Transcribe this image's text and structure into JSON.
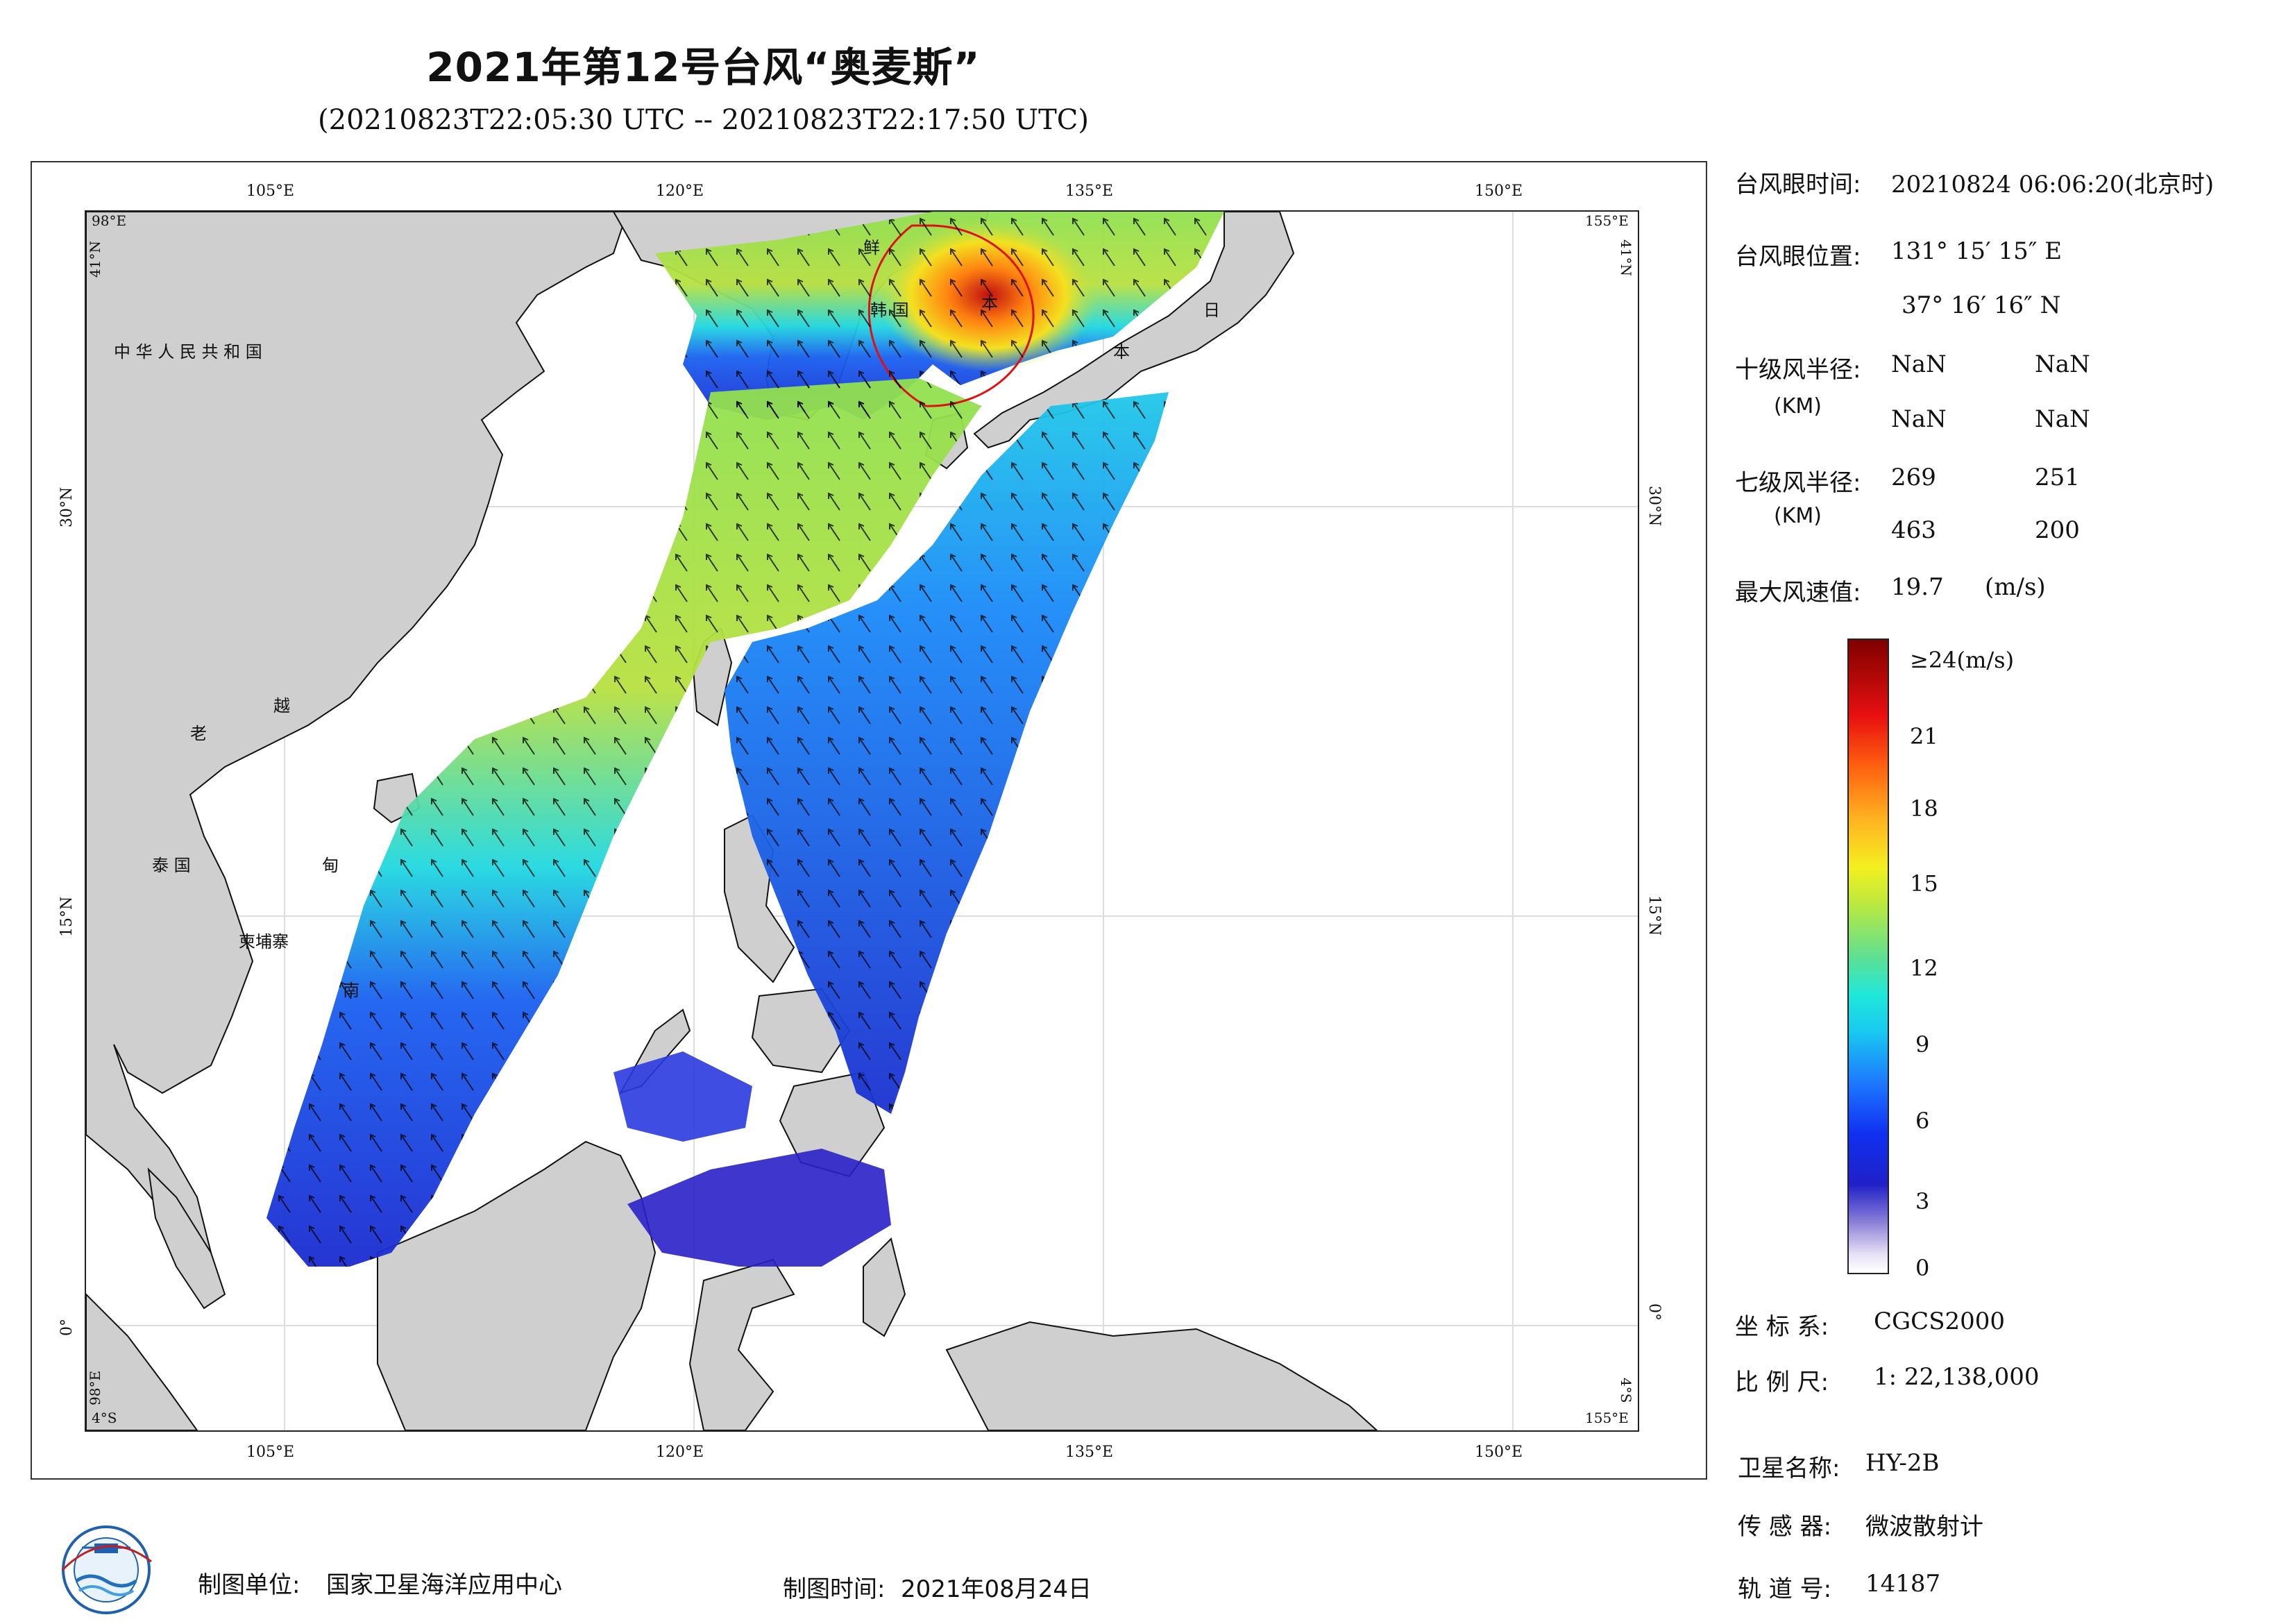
{
  "header": {
    "title": "2021年第12号台风“奥麦斯”",
    "subtitle": "(20210823T22:05:30 UTC -- 20210823T22:17:50 UTC)"
  },
  "map": {
    "top_ticks": [
      "105°E",
      "120°E",
      "135°E",
      "150°E"
    ],
    "bottom_ticks": [
      "105°E",
      "120°E",
      "135°E",
      "150°E"
    ],
    "left_ticks": [
      "30°N",
      "15°N",
      "0°"
    ],
    "right_ticks": [
      "30°N",
      "15°N",
      "0°"
    ],
    "corner_tl_lon": "98°E",
    "corner_tl_lat": "41°N",
    "corner_tr_lon": "155°E",
    "corner_tr_lat": "41°N",
    "corner_bl_lat": "4°S",
    "corner_bl_lon": "98°E",
    "corner_br_lat": "4°S",
    "corner_br_lon": "155°E",
    "labels": {
      "china": "中 华 人 民 共 和 国",
      "laos": "老",
      "vietnam_1": "越",
      "vietnam_2": "南",
      "thailand": "泰 国",
      "cambodia": "柬埔寨",
      "korea_north": "鲜",
      "korea_south": "韩 国",
      "japan_1": "日",
      "japan_2": "本",
      "dian": "甸",
      "ben": "本"
    },
    "colors": {
      "land": "#cfcfcf",
      "coast": "#111111",
      "low_wind": "#1a3ad8",
      "mid_wind": "#22d8e8",
      "high_wind": "#b8e040",
      "max_wind": "#e02010"
    }
  },
  "info": {
    "eye_time_label": "台风眼时间:",
    "eye_time_value": "20210824 06:06:20(北京时)",
    "eye_pos_label": "台风眼位置:",
    "eye_lon": "131° 15′ 15″ E",
    "eye_lat": "37° 16′ 16″ N",
    "r10_label": "十级风半径:",
    "r10_unit": "(KM)",
    "r10_values": [
      "NaN",
      "NaN",
      "NaN",
      "NaN"
    ],
    "r7_label": "七级风半径:",
    "r7_unit": "(KM)",
    "r7_values": [
      "269",
      "251",
      "463",
      "200"
    ],
    "max_wind_label": "最大风速值:",
    "max_wind_value": "19.7",
    "max_wind_unit": "(m/s)"
  },
  "colorbar": {
    "top_label": "≥24(m/s)",
    "ticks": [
      "21",
      "18",
      "15",
      "12",
      "9",
      "6",
      "3",
      "0"
    ]
  },
  "meta": {
    "crs_label": "坐 标 系:",
    "crs_value": "CGCS2000",
    "scale_label": "比 例 尺:",
    "scale_value": "1: 22,138,000",
    "sat_label": "卫星名称:",
    "sat_value": "HY-2B",
    "sensor_label": "传 感 器:",
    "sensor_value": "微波散射计",
    "orbit_label": "轨 道 号:",
    "orbit_value": "14187"
  },
  "footer": {
    "unit_label": "制图单位:",
    "unit_value": "国家卫星海洋应用中心",
    "time_label": "制图时间:",
    "time_value": "2021年08月24日"
  }
}
